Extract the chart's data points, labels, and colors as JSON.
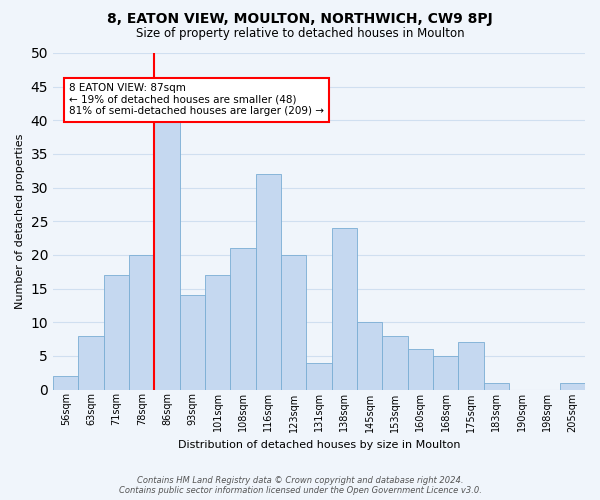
{
  "title": "8, EATON VIEW, MOULTON, NORTHWICH, CW9 8PJ",
  "subtitle": "Size of property relative to detached houses in Moulton",
  "xlabel": "Distribution of detached houses by size in Moulton",
  "ylabel": "Number of detached properties",
  "bar_labels": [
    "56sqm",
    "63sqm",
    "71sqm",
    "78sqm",
    "86sqm",
    "93sqm",
    "101sqm",
    "108sqm",
    "116sqm",
    "123sqm",
    "131sqm",
    "138sqm",
    "145sqm",
    "153sqm",
    "160sqm",
    "168sqm",
    "175sqm",
    "183sqm",
    "190sqm",
    "198sqm",
    "205sqm"
  ],
  "bar_values": [
    2,
    8,
    17,
    20,
    41,
    14,
    17,
    21,
    32,
    20,
    4,
    24,
    10,
    8,
    6,
    5,
    7,
    1,
    0,
    0,
    1
  ],
  "bar_color": "#c5d8f0",
  "bar_edge_color": "#7aadd4",
  "vline_index": 4,
  "vline_color": "red",
  "annotation_text": "8 EATON VIEW: 87sqm\n← 19% of detached houses are smaller (48)\n81% of semi-detached houses are larger (209) →",
  "annotation_box_color": "white",
  "annotation_box_edge_color": "red",
  "ylim": [
    0,
    50
  ],
  "yticks": [
    0,
    5,
    10,
    15,
    20,
    25,
    30,
    35,
    40,
    45,
    50
  ],
  "grid_color": "#d0dff0",
  "footer_line1": "Contains HM Land Registry data © Crown copyright and database right 2024.",
  "footer_line2": "Contains public sector information licensed under the Open Government Licence v3.0.",
  "bg_color": "#f0f5fb"
}
